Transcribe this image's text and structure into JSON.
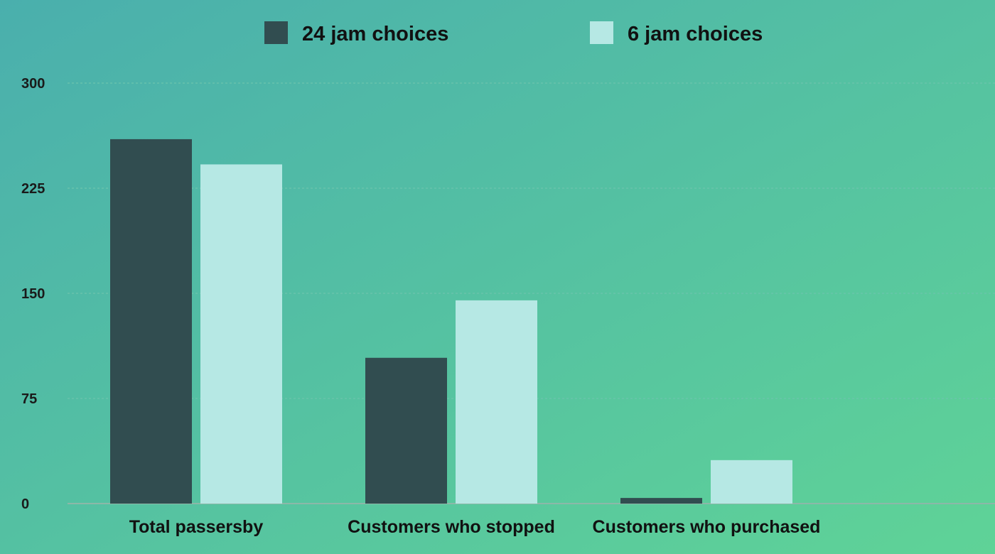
{
  "colors": {
    "background_start": "#4aafad",
    "background_end": "#5fd397",
    "gridline": "#6cc4ad",
    "baseline": "#8cb8a8"
  },
  "chart_data": {
    "type": "bar",
    "title": "",
    "xlabel": "",
    "ylabel": "",
    "ylim": [
      0,
      300
    ],
    "yticks": [
      0,
      75,
      150,
      225,
      300
    ],
    "ytick_labels": [
      "0",
      "75",
      "150",
      "225",
      "300"
    ],
    "grid": true,
    "legend_position": "top-center",
    "categories": [
      "Total passersby",
      "Customers who stopped",
      "Customers who purchased"
    ],
    "series": [
      {
        "name": "24 jam choices",
        "color": "#314d50",
        "values": [
          260,
          104,
          4
        ]
      },
      {
        "name": "6 jam choices",
        "color": "#b6e8e4",
        "values": [
          242,
          145,
          31
        ]
      }
    ]
  }
}
